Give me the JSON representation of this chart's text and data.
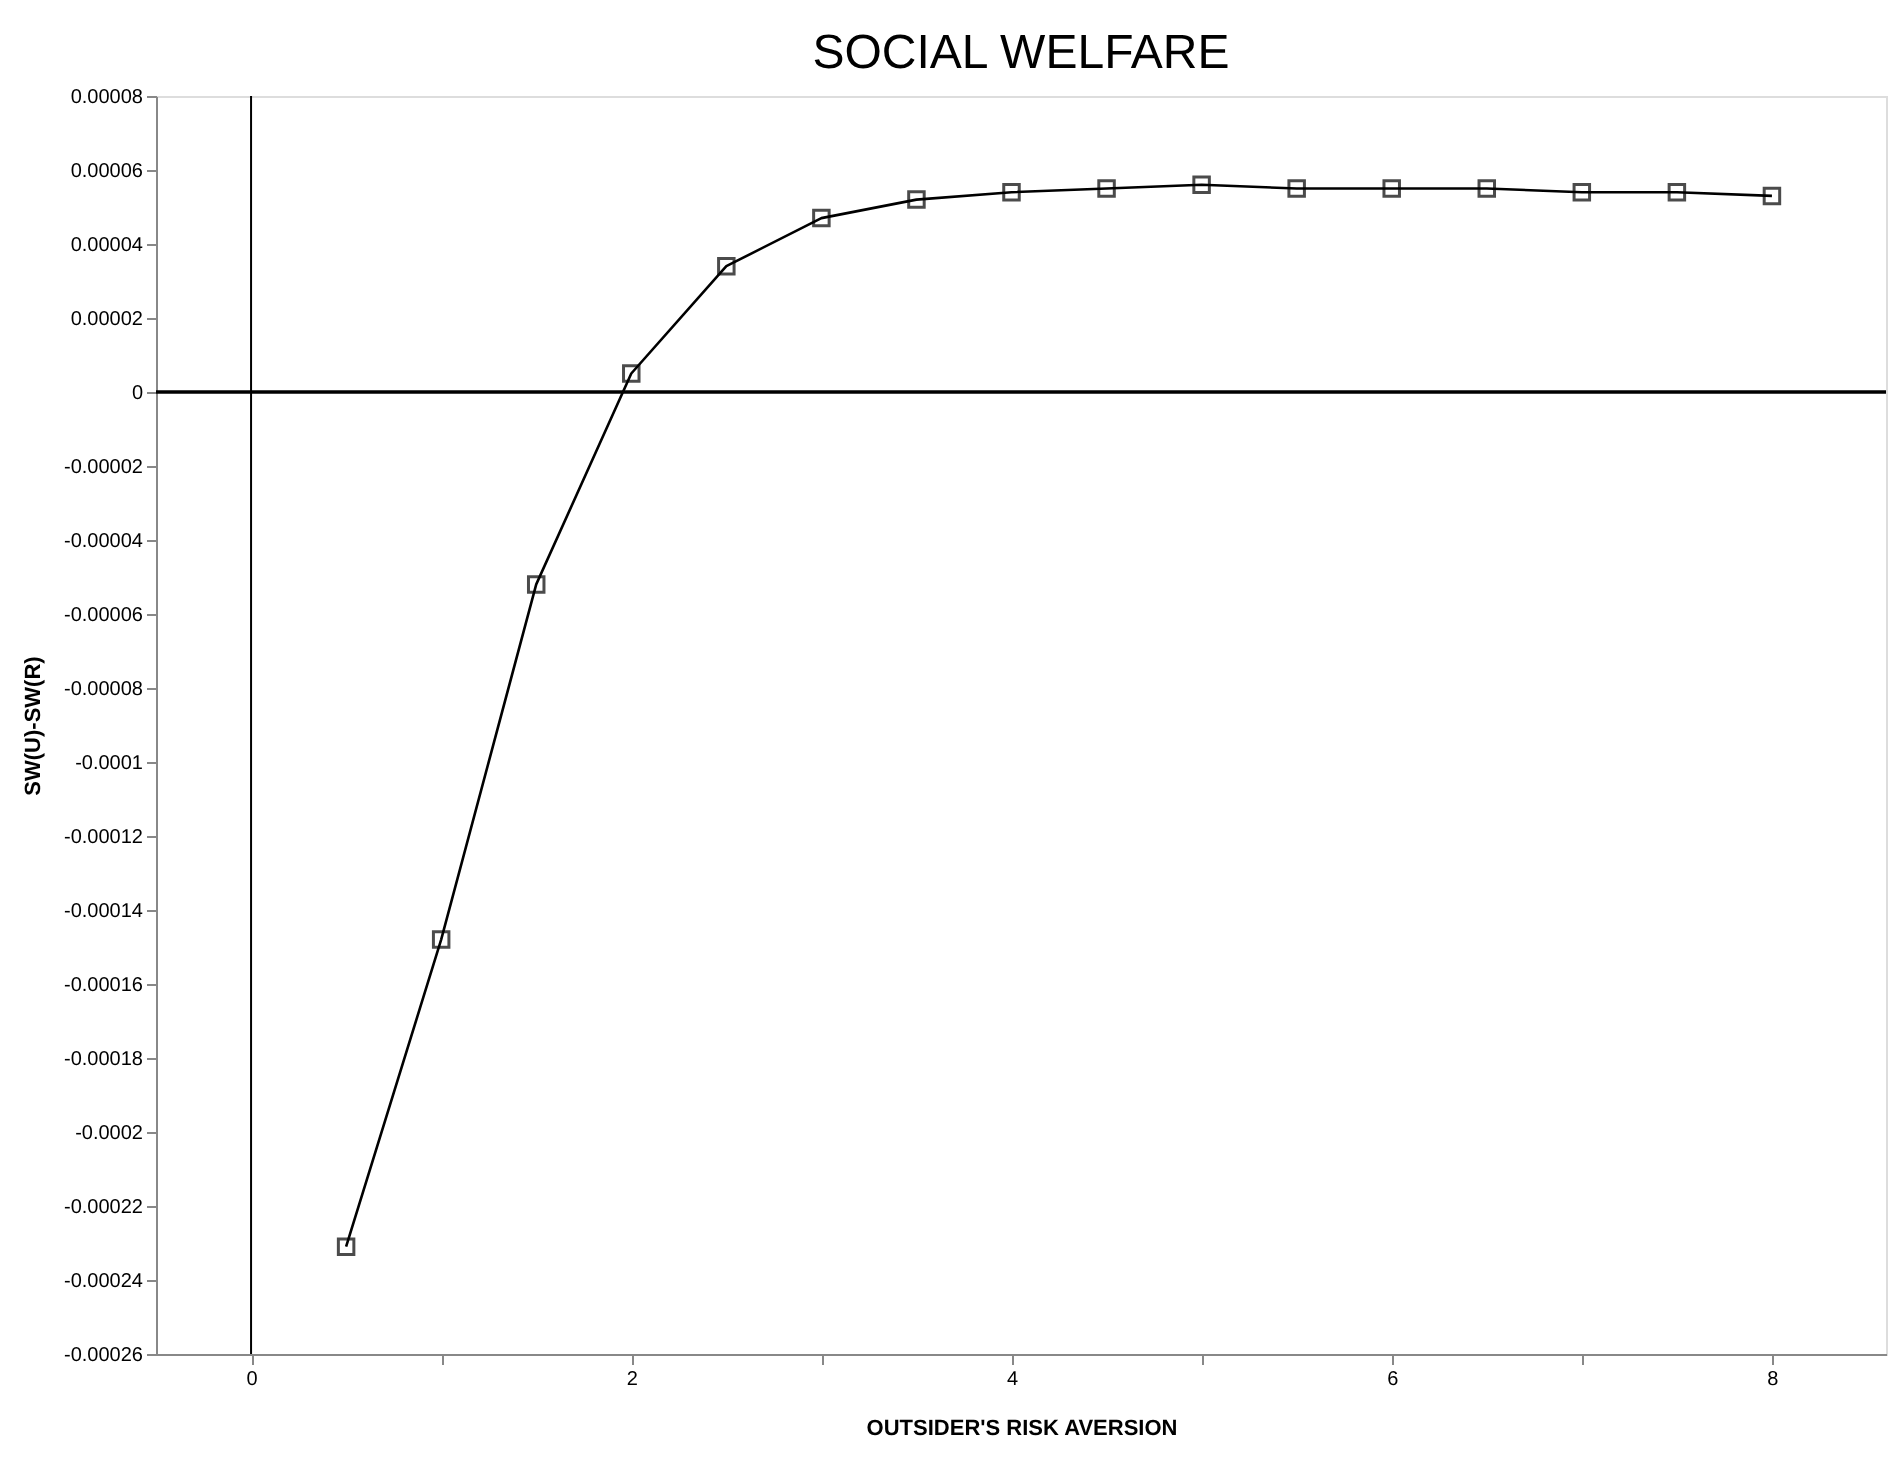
{
  "chart_data": {
    "type": "line",
    "title": "SOCIAL WELFARE",
    "xlabel": "OUTSIDER'S RISK AVERSION",
    "ylabel": "SW(U)-SW(R)",
    "x": [
      0.5,
      1,
      1.5,
      2,
      2.5,
      3,
      3.5,
      4,
      4.5,
      5,
      5.5,
      6,
      6.5,
      7,
      7.5,
      8
    ],
    "series": [
      {
        "color": "#000000",
        "values": [
          -0.000231,
          -0.000148,
          -5.2e-05,
          5e-06,
          3.4e-05,
          4.7e-05,
          5.2e-05,
          5.4e-05,
          5.5e-05,
          5.6e-05,
          5.5e-05,
          5.5e-05,
          5.5e-05,
          5.4e-05,
          5.4e-05,
          5.3e-05
        ]
      }
    ],
    "xlim": [
      -0.5,
      8.6
    ],
    "ylim": [
      -0.00026,
      8e-05
    ],
    "xticks": [
      0,
      {
        "value": 1,
        "label": null
      },
      2,
      {
        "value": 3,
        "label": null
      },
      4,
      {
        "value": 5,
        "label": null
      },
      6,
      {
        "value": 7,
        "label": null
      },
      8
    ],
    "yticks": [
      {
        "value": -0.00026,
        "label": "-0.00026"
      },
      {
        "value": -0.00024,
        "label": "-0.00024"
      },
      {
        "value": -0.00022,
        "label": "-0.00022"
      },
      {
        "value": -0.0002,
        "label": "-0.0002"
      },
      {
        "value": -0.00018,
        "label": "-0.00018"
      },
      {
        "value": -0.00016,
        "label": "-0.00016"
      },
      {
        "value": -0.00014,
        "label": "-0.00014"
      },
      {
        "value": -0.00012,
        "label": "-0.00012"
      },
      {
        "value": -0.0001,
        "label": "-0.0001"
      },
      {
        "value": -8e-05,
        "label": "-0.00008"
      },
      {
        "value": -6e-05,
        "label": "-0.00006"
      },
      {
        "value": -4e-05,
        "label": "-0.00004"
      },
      {
        "value": -2e-05,
        "label": "-0.00002"
      },
      0,
      {
        "value": 2e-05,
        "label": "0.00002"
      },
      {
        "value": 4e-05,
        "label": "0.00004"
      },
      {
        "value": 6e-05,
        "label": "0.00006"
      },
      {
        "value": 8e-05,
        "label": "0.00008"
      }
    ],
    "ref_lines": [
      {
        "axis": "y",
        "value": 0,
        "color": "#000000"
      },
      {
        "axis": "x",
        "value": 0,
        "color": "#000000"
      }
    ],
    "marker": "square",
    "line_style": "solid",
    "grid": false
  }
}
